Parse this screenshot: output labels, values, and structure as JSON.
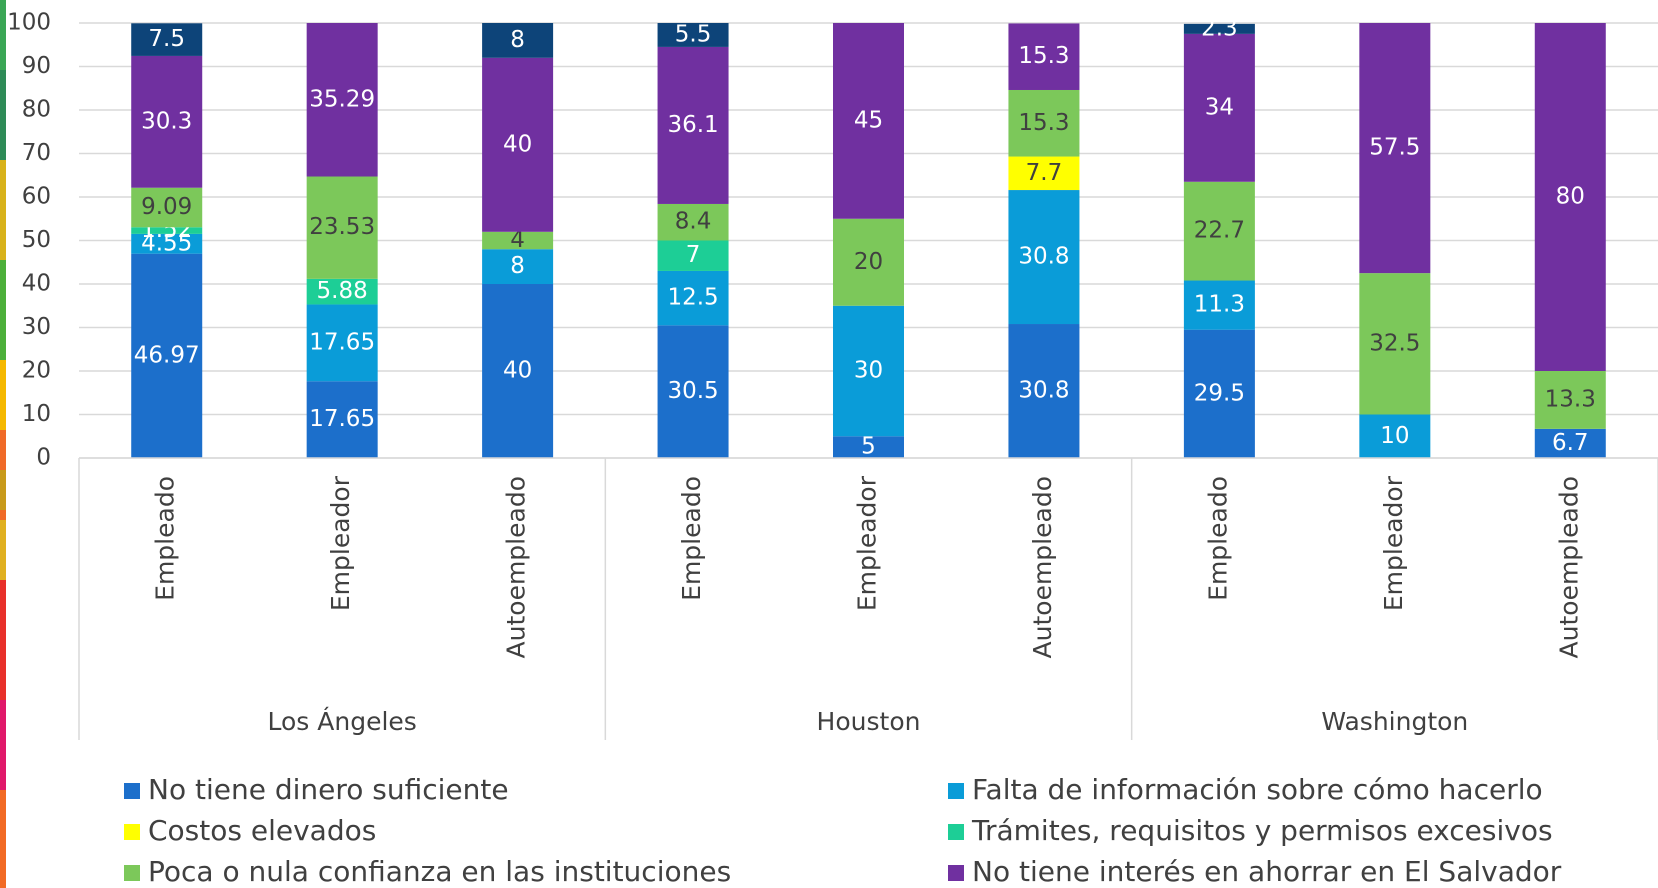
{
  "chart_data": {
    "type": "stacked_bar",
    "categories": [
      "Empleado",
      "Empleador",
      "Autoempleado",
      "Empleado",
      "Empleador",
      "Autoempleado",
      "Empleado",
      "Empleador",
      "Autoempleado"
    ],
    "groups": [
      "Los Ángeles",
      "Houston",
      "Washington"
    ],
    "series": [
      {
        "name": "No tiene dinero suficiente",
        "color": "#1c6fcb",
        "values": [
          46.97,
          17.65,
          40,
          30.5,
          5,
          30.8,
          29.5,
          null,
          6.7
        ]
      },
      {
        "name": "Falta de información sobre cómo hacerlo",
        "color": "#0a9cd8",
        "values": [
          4.55,
          17.65,
          8,
          12.5,
          30,
          30.8,
          11.3,
          10,
          null
        ]
      },
      {
        "name": "Costos elevados",
        "color": "#ffff00",
        "values": [
          null,
          null,
          null,
          null,
          null,
          7.7,
          null,
          null,
          null
        ]
      },
      {
        "name": "Trámites, requisitos y permisos excesivos",
        "color": "#1dce96",
        "values": [
          1.52,
          5.88,
          null,
          7,
          null,
          null,
          null,
          null,
          null
        ]
      },
      {
        "name": "Poca o nula confianza en las instituciones",
        "color": "#7cc85a",
        "values": [
          9.09,
          23.53,
          4,
          8.4,
          20,
          15.3,
          22.7,
          32.5,
          13.3
        ]
      },
      {
        "name": "No tiene interés en ahorrar en  El Salvador",
        "color": "#7030a0",
        "values": [
          30.3,
          35.29,
          40,
          36.1,
          45,
          15.3,
          34,
          57.5,
          80
        ]
      },
      {
        "color": "#0d4479",
        "values": [
          7.5,
          null,
          8,
          5.5,
          null,
          null,
          2.3,
          null,
          null
        ]
      }
    ],
    "ylim": [
      0,
      100
    ],
    "yticks": [
      0,
      10,
      20,
      30,
      40,
      50,
      60,
      70,
      80,
      90,
      100
    ],
    "grid": true
  }
}
